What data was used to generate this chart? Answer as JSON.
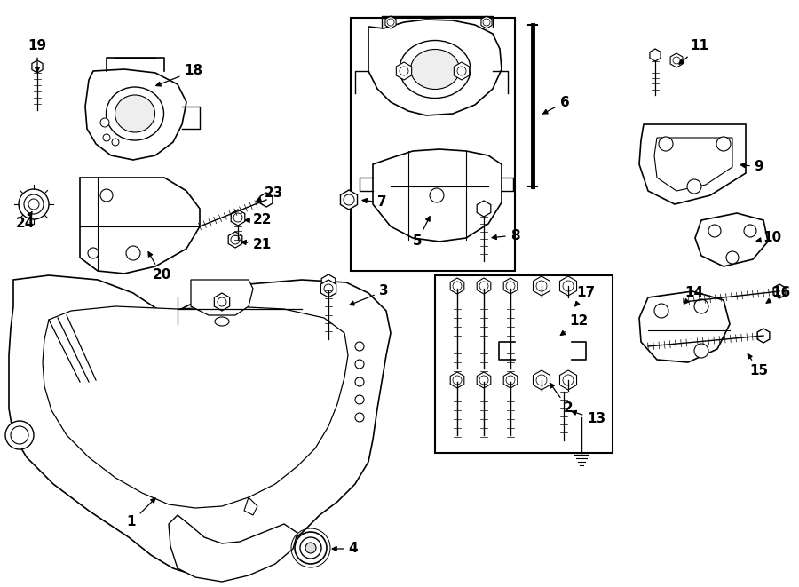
{
  "bg_color": "#ffffff",
  "line_color": "#000000",
  "label_color": "#000000",
  "fig_w": 9.0,
  "fig_h": 6.61,
  "dpi": 100,
  "xlim": [
    0,
    900
  ],
  "ylim": [
    0,
    661
  ]
}
